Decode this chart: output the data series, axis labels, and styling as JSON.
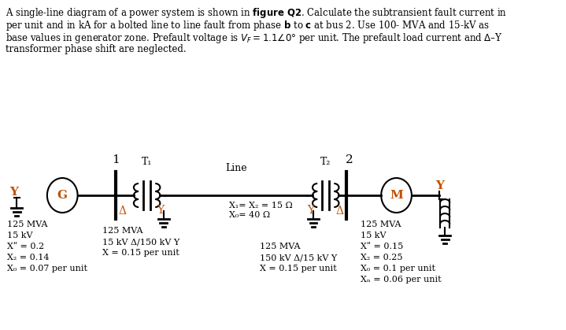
{
  "bg_color": "#ffffff",
  "text_color": "#000000",
  "orange_color": "#c05000",
  "gen_label": "G",
  "motor_label": "M",
  "bus1_label": "1",
  "bus2_label": "2",
  "T1_label": "T₁",
  "T2_label": "T₂",
  "line_label": "Line",
  "line_impedance1": "X₁= X₂ = 15 Ω",
  "line_impedance2": "X₀= 40 Ω",
  "gen_data": [
    "125 MVA",
    "15 kV",
    "Xʺ = 0.2",
    "X₂ = 0.14",
    "X₀ = 0.07 per unit"
  ],
  "T1_data": [
    "125 MVA",
    "15 kV Δ/150 kV Y",
    "X = 0.15 per unit"
  ],
  "T2_data": [
    "125 MVA",
    "150 kV Δ/15 kV Y",
    "X = 0.15 per unit"
  ],
  "motor_data": [
    "125 MVA",
    "15 kV",
    "Xʺ = 0.15",
    "X₂ = 0.25",
    "X₀ = 0.1 per unit",
    "Xₙ = 0.06 per unit"
  ],
  "header_lines": [
    "A single-line diagram of a power system is shown in $\\bf{figure\\ Q2}$. Calculate the subtransient fault current in",
    "per unit and in kA for a bolted line to line fault from phase $\\bf{b}$ to $\\bf{c}$ at bus 2. Use 100- MVA and 15-kV as",
    "base values in generator zone. Prefault voltage is $V_F = 1.1\\angle0°$ per unit. The prefault load current and $\\Delta$–Y",
    "transformer phase shift are neglected."
  ]
}
